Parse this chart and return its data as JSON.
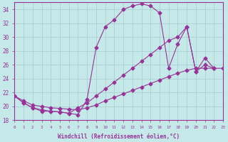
{
  "xlabel": "Windchill (Refroidissement éolien,°C)",
  "xlim": [
    0,
    23
  ],
  "ylim": [
    18,
    35
  ],
  "yticks": [
    18,
    20,
    22,
    24,
    26,
    28,
    30,
    32,
    34
  ],
  "xticks": [
    0,
    1,
    2,
    3,
    4,
    5,
    6,
    7,
    8,
    9,
    10,
    11,
    12,
    13,
    14,
    15,
    16,
    17,
    18,
    19,
    20,
    21,
    22,
    23
  ],
  "background_color": "#c5e8e8",
  "grid_color": "#a8cccc",
  "line_color": "#993399",
  "line1_x": [
    0,
    1,
    2,
    3,
    4,
    5,
    6,
    7,
    8,
    9,
    10,
    11,
    12,
    13,
    14,
    15,
    16,
    17,
    18,
    19,
    20,
    21,
    22
  ],
  "line1_y": [
    21.5,
    20.5,
    19.8,
    19.3,
    19.3,
    19.2,
    19.0,
    18.8,
    21.0,
    28.5,
    31.5,
    32.5,
    34.0,
    34.5,
    34.8,
    34.5,
    33.5,
    25.5,
    29.0,
    31.5,
    25.0,
    27.0,
    25.5
  ],
  "line2_x": [
    0,
    1,
    2,
    3,
    4,
    5,
    6,
    7,
    8,
    9,
    10,
    11,
    12,
    13,
    14,
    15,
    16,
    17,
    18,
    19,
    20,
    21,
    22
  ],
  "line2_y": [
    21.5,
    20.5,
    19.8,
    19.5,
    19.3,
    19.2,
    19.0,
    19.8,
    20.5,
    21.5,
    22.5,
    23.5,
    24.5,
    25.5,
    26.5,
    27.5,
    28.5,
    29.5,
    30.0,
    31.5,
    25.0,
    26.0,
    25.5
  ],
  "line3_x": [
    0,
    1,
    2,
    3,
    4,
    5,
    6,
    7,
    8,
    9,
    10,
    11,
    12,
    13,
    14,
    15,
    16,
    17,
    18,
    19,
    20,
    21,
    22,
    23
  ],
  "line3_y": [
    21.5,
    20.8,
    20.2,
    20.0,
    19.8,
    19.7,
    19.6,
    19.5,
    19.8,
    20.2,
    20.8,
    21.3,
    21.8,
    22.3,
    22.8,
    23.3,
    23.8,
    24.3,
    24.8,
    25.2,
    25.5,
    25.5,
    25.5,
    25.5
  ]
}
